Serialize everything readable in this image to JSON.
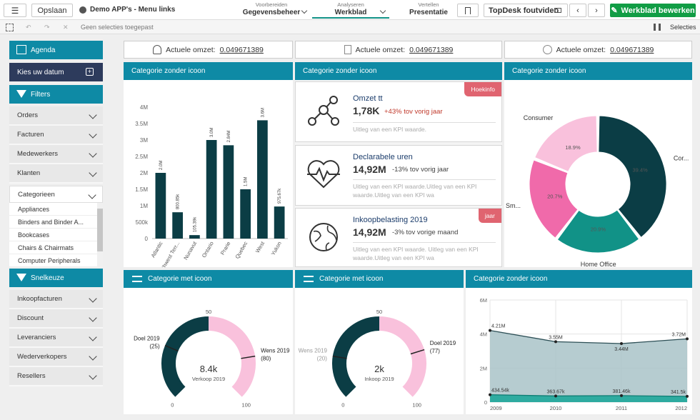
{
  "toolbar": {
    "save_label": "Opslaan",
    "app_title": "Demo APP's - Menu links",
    "tabs": [
      {
        "small": "Voorbereiden",
        "big": "Gegevensbeheer"
      },
      {
        "small": "Analyseren",
        "big": "Werkblad"
      },
      {
        "small": "Vertellen",
        "big": "Presentatie"
      }
    ],
    "video_label": "TopDesk foutvideo",
    "edit_label": "Werkblad bewerken"
  },
  "selbar": {
    "no_selection": "Geen selecties toegepast",
    "selections_label": "Selecties"
  },
  "sidebar": {
    "agenda": "Agenda",
    "date_picker": "Kies uw datum",
    "filters": "Filters",
    "filter_items": [
      "Orders",
      "Facturen",
      "Medewerkers",
      "Klanten"
    ],
    "categories_label": "Categorieen",
    "category_list": [
      "Appliances",
      "Binders and Binder A...",
      "Bookcases",
      "Chairs & Chairmats",
      "Computer Peripherals"
    ],
    "snelkeuze": "Snelkeuze",
    "snel_items": [
      "Inkoopfacturen",
      "Discount",
      "Leveranciers",
      "Wederverkopers",
      "Resellers"
    ]
  },
  "kpis_top": [
    {
      "label": "Actuele omzet:",
      "value": "0.049671389"
    },
    {
      "label": "Actuele omzet:",
      "value": "0.049671389"
    },
    {
      "label": "Actuele omzet:",
      "value": "0.049671389"
    }
  ],
  "panel_titles": {
    "bar": "Categorie zonder icoon",
    "kpis": "Categorie zonder icoon",
    "donut": "Categorie zonder icoon",
    "gauge1": "Categorie met icoon",
    "gauge2": "Categorie met icoon",
    "area": "Categorie zonder icoon"
  },
  "kpi_cards": [
    {
      "title": "Omzet tt",
      "value": "1,78K",
      "change": "+43% tov vorig jaar",
      "desc": "Uitleg van een KPI waarde.",
      "tag": "Hoekinfo",
      "change_color": "#c0392b"
    },
    {
      "title": "Declarabele uren",
      "value": "14,92M",
      "change": "-13% tov vorig jaar",
      "desc": "Uitleg van een KPI waarde.Uitleg van een KPI waarde.Uitleg van een KPI wa",
      "tag": "",
      "change_color": "#444"
    },
    {
      "title": "Inkoopbelasting 2019",
      "value": "14,92M",
      "change": "-3% tov vorige maand",
      "desc": "Uitleg van een KPI waarde. Uitleg van een KPI waarde.Uitleg van een KPI wa",
      "tag": "jaar",
      "change_color": "#444"
    }
  ],
  "gauges": [
    {
      "goal_label": "Doel 2019",
      "goal_value": "(25)",
      "wish_label": "Wens 2019",
      "wish_value": "(80)",
      "center_value": "8.4k",
      "center_label": "Verkoop 2019",
      "min": "0",
      "mid": "50",
      "max": "100",
      "value": 8.4,
      "wish": 80,
      "goal": 25
    },
    {
      "goal_label": "Doel 2019",
      "goal_value": "(77)",
      "wish_label": "Wens 2019",
      "wish_value": "(20)",
      "center_value": "2k",
      "center_label": "Inkoop 2019",
      "min": "0",
      "mid": "50",
      "max": "100",
      "value": 2,
      "wish": 20,
      "goal": 77
    }
  ],
  "colors": {
    "teal": "#0e8aa5",
    "dark": "#0b3d45",
    "pink": "#f4a4cc",
    "hotpink": "#f06aaa",
    "lightpink": "#f9c1dc",
    "green": "#119287"
  },
  "chart_data": [
    {
      "type": "bar",
      "categories": [
        "Atlantic",
        "Northwest Terr...",
        "Nunavut",
        "Ontario",
        "Prarie",
        "Quebec",
        "West",
        "Yukon"
      ],
      "values": [
        2.0,
        0.80085,
        0.10539,
        3.0,
        2.84,
        1.5,
        3.6,
        0.97567
      ],
      "value_labels": [
        "2.0M",
        "800.85k",
        "105.39k",
        "3.0M",
        "2.84M",
        "1.5M",
        "3.6M",
        "975.67k"
      ],
      "yticks": [
        "0",
        "500k",
        "1M",
        "1.5M",
        "2M",
        "2.5M",
        "3M",
        "3.5M",
        "4M"
      ],
      "ylim": [
        0,
        4
      ],
      "color": "#0b3d45"
    },
    {
      "type": "pie",
      "labels": [
        "Consumer",
        "Corporate",
        "Home Office",
        "Small Business"
      ],
      "visible_labels": [
        "Consumer",
        "Cor...",
        "Home Office",
        "Sm..."
      ],
      "values": [
        18.9,
        39.4,
        20.9,
        20.7
      ],
      "pct_labels": [
        "18.9%",
        "39.4%",
        "20.9%",
        "20.7%"
      ],
      "colors": [
        "#f9c1dc",
        "#0b3d45",
        "#119287",
        "#f06aaa"
      ]
    },
    {
      "type": "area",
      "x": [
        "2009",
        "2010",
        "2011",
        "2012"
      ],
      "series": [
        {
          "values": [
            4.21,
            3.55,
            3.44,
            3.72
          ],
          "labels": [
            "4.21M",
            "3.55M",
            "3.44M",
            "3.72M"
          ]
        },
        {
          "values": [
            0.43454,
            0.36367,
            0.38146,
            0.3415
          ],
          "labels": [
            "434.54k",
            "363.67k",
            "381.46k",
            "341.5k"
          ]
        }
      ],
      "yticks": [
        "0",
        "2M",
        "4M",
        "6M"
      ],
      "ylim": [
        0,
        6
      ]
    }
  ]
}
